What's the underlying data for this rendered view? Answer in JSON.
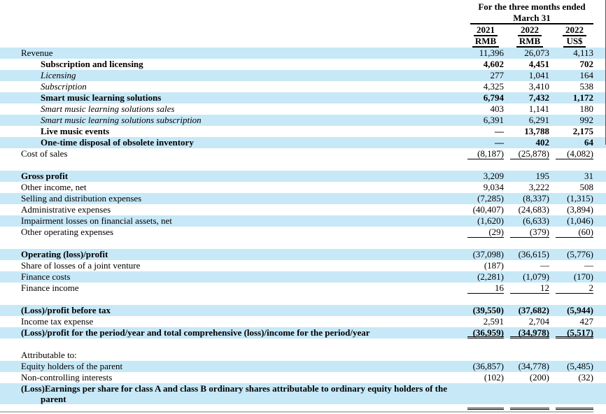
{
  "header": {
    "period_line1": "For the three months ended",
    "period_line2": "March 31",
    "columns": [
      {
        "year": "2021",
        "currency": "RMB"
      },
      {
        "year": "2022",
        "currency": "RMB"
      },
      {
        "year": "2022",
        "currency": "US$"
      }
    ]
  },
  "colors": {
    "row_highlight": "#C7E8F7",
    "rule_line": "#000000",
    "bottom_shadow": "#BCBCBC"
  },
  "rows": [
    {
      "label": "Revenue",
      "highlight": true,
      "values": [
        "11,396",
        "26,073",
        "4,113"
      ]
    },
    {
      "label": "Subscription and licensing",
      "bold": true,
      "indent": 1,
      "values_bold": true,
      "values": [
        "4,602",
        "4,451",
        "702"
      ]
    },
    {
      "label": "Licensing",
      "italic": true,
      "indent": 1,
      "highlight": true,
      "values": [
        "277",
        "1,041",
        "164"
      ]
    },
    {
      "label": "Subscription",
      "italic": true,
      "indent": 1,
      "values": [
        "4,325",
        "3,410",
        "538"
      ]
    },
    {
      "label": "Smart music learning solutions",
      "bold": true,
      "indent": 1,
      "highlight": true,
      "values_bold": true,
      "values": [
        "6,794",
        "7,432",
        "1,172"
      ]
    },
    {
      "label": "Smart music learning solutions sales",
      "italic": true,
      "indent": 1,
      "values": [
        "403",
        "1,141",
        "180"
      ]
    },
    {
      "label": "Smart music learning solutions subscription",
      "italic": true,
      "indent": 1,
      "highlight": true,
      "values": [
        "6,391",
        "6,291",
        "992"
      ]
    },
    {
      "label": "Live music events",
      "bold": true,
      "indent": 1,
      "values_bold": true,
      "values": [
        "—",
        "13,788",
        "2,175"
      ]
    },
    {
      "label": "One-time disposal of obsolete inventory",
      "bold": true,
      "indent": 1,
      "highlight": true,
      "values_bold": true,
      "values": [
        "—",
        "402",
        "64"
      ]
    },
    {
      "label": "Cost of sales",
      "underline": "single",
      "values": [
        "(8,187)",
        "(25,878)",
        "(4,082)"
      ]
    },
    {
      "type": "spacer"
    },
    {
      "label": "Gross profit",
      "bold": true,
      "highlight": true,
      "values": [
        "3,209",
        "195",
        "31"
      ]
    },
    {
      "label": "Other income, net",
      "values": [
        "9,034",
        "3,222",
        "508"
      ]
    },
    {
      "label": "Selling and distribution expenses",
      "highlight": true,
      "values": [
        "(7,285)",
        "(8,337)",
        "(1,315)"
      ]
    },
    {
      "label": "Administrative expenses",
      "values": [
        "(40,407)",
        "(24,683)",
        "(3,894)"
      ]
    },
    {
      "label": "Impairment losses on financial assets, net",
      "highlight": true,
      "values": [
        "(1,620)",
        "(6,633)",
        "(1,046)"
      ]
    },
    {
      "label": "Other operating expenses",
      "underline": "single",
      "values": [
        "(29)",
        "(379)",
        "(60)"
      ]
    },
    {
      "type": "spacer"
    },
    {
      "label": "Operating (loss)/profit",
      "bold": true,
      "highlight": true,
      "values": [
        "(37,098)",
        "(36,615)",
        "(5,776)"
      ]
    },
    {
      "label": "Share of losses of a joint venture",
      "values": [
        "(187)",
        "—",
        "—"
      ]
    },
    {
      "label": "Finance costs",
      "highlight": true,
      "values": [
        "(2,281)",
        "(1,079)",
        "(170)"
      ]
    },
    {
      "label": "Finance income",
      "underline": "single",
      "values": [
        "16",
        "12",
        "2"
      ]
    },
    {
      "type": "spacer"
    },
    {
      "label": "(Loss)/profit before tax",
      "bold": true,
      "highlight": true,
      "values_bold": true,
      "values": [
        "(39,550)",
        "(37,682)",
        "(5,944)"
      ]
    },
    {
      "label": "Income tax expense",
      "values": [
        "2,591",
        "2,704",
        "427"
      ]
    },
    {
      "label": "(Loss)/profit for the period/year and total comprehensive (loss)/income for the period/year",
      "bold": true,
      "highlight": true,
      "values_bold": true,
      "underline": "double",
      "values": [
        "(36,959)",
        "(34,978)",
        "(5,517)"
      ]
    },
    {
      "type": "spacer"
    },
    {
      "label": "Attributable to:",
      "values": [
        "",
        "",
        ""
      ]
    },
    {
      "label": "Equity holders of the parent",
      "highlight": true,
      "values": [
        "(36,857)",
        "(34,778)",
        "(5,485)"
      ]
    },
    {
      "label": "Non-controlling interests",
      "values": [
        "(102)",
        "(200)",
        "(32)"
      ]
    },
    {
      "label": "(Loss)Earnings per share for class A and class B ordinary shares attributable to ordinary equity holders of the",
      "label2": "parent",
      "bold": true,
      "highlight": true,
      "values": [
        "",
        "",
        ""
      ]
    },
    {
      "type": "rule"
    }
  ]
}
